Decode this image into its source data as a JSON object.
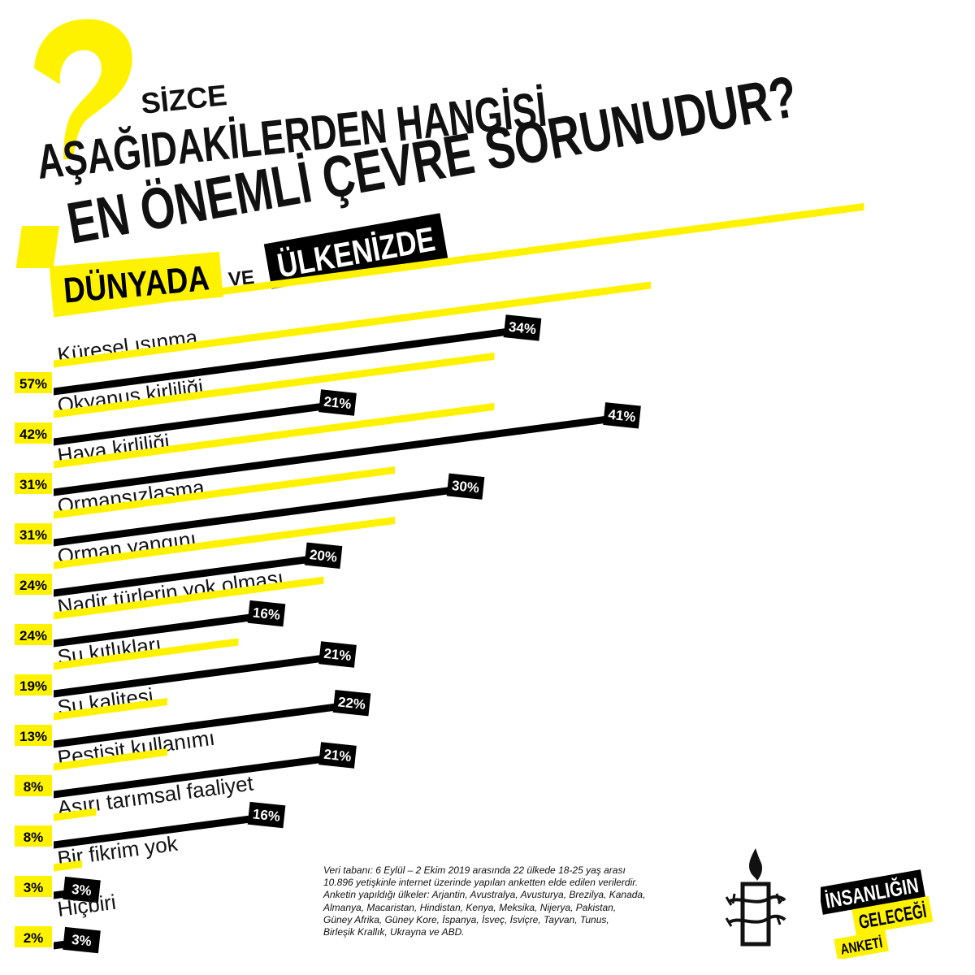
{
  "header": {
    "sizce": "SİZCE",
    "line2": "AŞAĞIDAKİLERDEN HANGİSİ",
    "line3": "EN ÖNEMLİ ÇEVRE SORUNUDUR?",
    "dunyada": "DÜNYADA",
    "ve": "VE",
    "ulkenizde": "ÜLKENİZDE"
  },
  "colors": {
    "world": "#FFF200",
    "country": "#000000",
    "text": "#111111"
  },
  "chart_data": {
    "type": "bar",
    "categories": [
      "Küresel ısınma",
      "Okyanus kirliliği",
      "Hava kirliliği",
      "Ormansızlaşma",
      "Orman yangını",
      "Nadir türlerin yok olması",
      "Su kıtlıkları",
      "Su kalitesi",
      "Pestisit kullanımı",
      "Aşırı tarımsal faaliyet",
      "Bir fikrim yok",
      "Hiçbiri"
    ],
    "series": [
      {
        "name": "DÜNYADA",
        "values": [
          57,
          42,
          31,
          31,
          24,
          24,
          19,
          13,
          8,
          8,
          3,
          2
        ],
        "labels": [
          "57%",
          "42%",
          "31%",
          "31%",
          "24%",
          "24%",
          "19%",
          "13%",
          "8%",
          "8%",
          "3%",
          "2%"
        ]
      },
      {
        "name": "ÜLKENİZDE",
        "values": [
          34,
          21,
          41,
          30,
          20,
          16,
          21,
          22,
          21,
          16,
          3,
          3
        ],
        "labels": [
          "34%",
          "21%",
          "41%",
          "30%",
          "20%",
          "16%",
          "21%",
          "22%",
          "21%",
          "16%",
          "3%",
          "3%"
        ]
      }
    ]
  },
  "footnote": {
    "lines": [
      "Veri tabanı: 6 Eylül – 2 Ekim 2019 arasında 22 ülkede 18-25 yaş arası",
      "10.896 yetişkinle internet üzerinde yapılan anketten elde edilen verilerdir.",
      "Anketin yapıldığı ülkeler: Arjantin, Avustralya, Avusturya, Brezilya, Kanada,",
      "Almanya, Macaristan, Hindistan, Kenya, Meksika, Nijerya, Pakistan,",
      "Güney Afrika, Güney Kore, İspanya, İsveç, İsviçre, Tayvan, Tunus,",
      "Birleşik Krallık, Ukrayna ve ABD."
    ]
  },
  "survey_logo": {
    "line1": "İNSANLIĞIN",
    "line2": "GELECEĞİ",
    "line3": "ANKETİ"
  }
}
